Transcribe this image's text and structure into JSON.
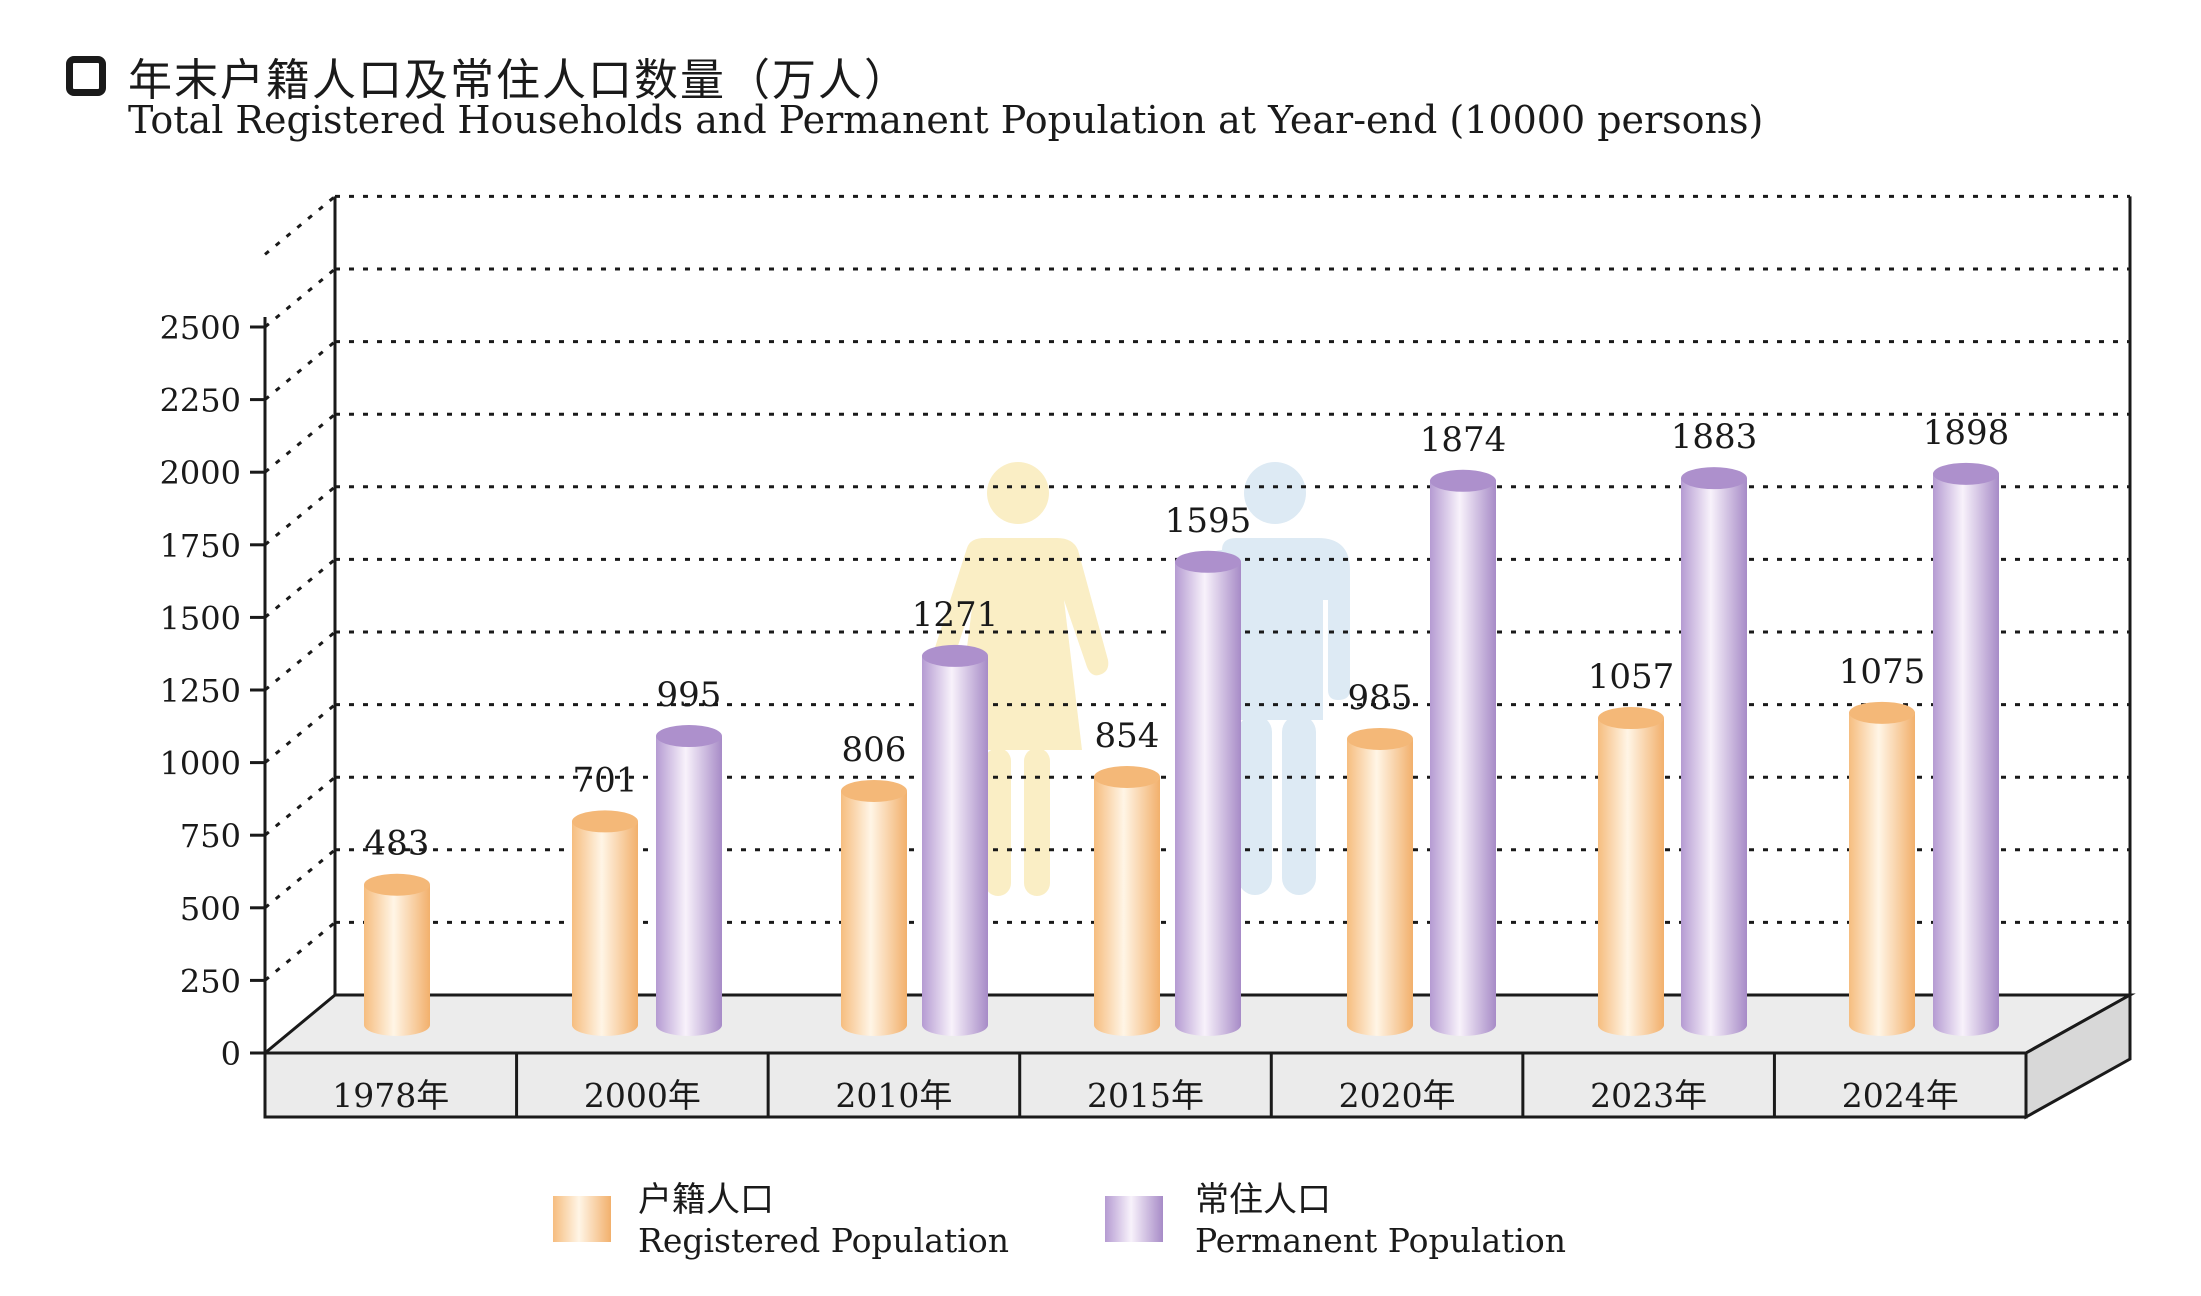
{
  "title": {
    "chinese": "年末户籍人口及常住人口数量（万人）",
    "english": "Total Registered Households and Permanent Population at Year-end (10000 persons)"
  },
  "legend": [
    {
      "chinese": "户籍人口",
      "english": "Registered Population",
      "color": "#f6c48a"
    },
    {
      "chinese": "常住人口",
      "english": "Permanent Population",
      "color": "#b79ad0"
    }
  ],
  "colors": {
    "registered_light": "#fff4e4",
    "registered_dark": "#f4b878",
    "permanent_light": "#f5eefa",
    "permanent_dark": "#ad90cc",
    "woman_figure": "#faeec5",
    "man_figure": "#ddeaf4",
    "floor": "#ececec"
  },
  "chart_data": {
    "type": "bar",
    "categories": [
      "1978年",
      "2000年",
      "2010年",
      "2015年",
      "2020年",
      "2023年",
      "2024年"
    ],
    "series": [
      {
        "name": "户籍人口 Registered Population",
        "values": [
          483,
          701,
          806,
          854,
          985,
          1057,
          1075
        ]
      },
      {
        "name": "常住人口 Permanent Population",
        "values": [
          null,
          995,
          1271,
          1595,
          1874,
          1883,
          1898
        ]
      }
    ],
    "yticks": [
      "0",
      "250",
      "500",
      "750",
      "1000",
      "1250",
      "1500",
      "1750",
      "2000",
      "2250",
      "2500"
    ],
    "ylim": [
      0,
      2500
    ],
    "grid": true,
    "legend_position": "bottom"
  }
}
